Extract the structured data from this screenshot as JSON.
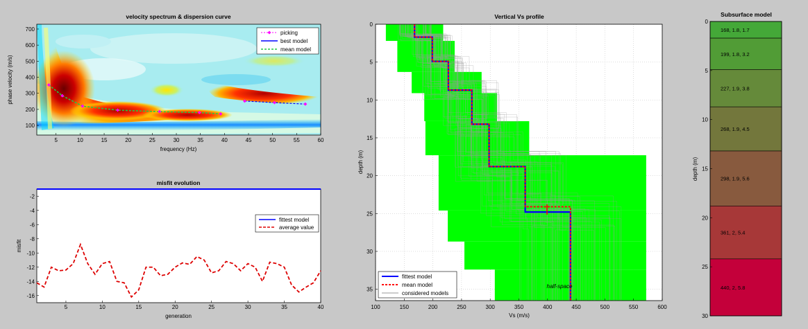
{
  "colors": {
    "figure_bg": "#c8c8c8",
    "fittest": "#0000ff",
    "mean": "#ff0000",
    "considered": "#9a9a9a",
    "envelope": "#00ff00",
    "picking": "#ff00ff",
    "mean_model_dash": "#00cc44"
  },
  "chart_data": [
    {
      "type": "heatmap",
      "title": "velocity spectrum & dispersion curve",
      "xlabel": "frequency (Hz)",
      "ylabel": "phase velocity (m/s)",
      "xlim": [
        1,
        60
      ],
      "ylim": [
        40,
        730
      ],
      "xticks": [
        5,
        10,
        15,
        20,
        25,
        30,
        35,
        40,
        45,
        50,
        55,
        60
      ],
      "yticks": [
        100,
        200,
        300,
        400,
        500,
        600,
        700
      ],
      "legend": {
        "placement": "top-right",
        "entries": [
          "picking",
          "best model",
          "mean model"
        ]
      },
      "series": [
        {
          "name": "picking",
          "x": [
            3.5,
            6.3,
            10.5,
            17.8,
            26.5,
            34.8,
            39.2,
            44.2,
            50.4,
            56.8
          ],
          "y": [
            352,
            285,
            220,
            195,
            186,
            180,
            172,
            252,
            242,
            233
          ]
        },
        {
          "name": "mean model",
          "x": [
            3.5,
            6.3,
            10.5,
            17.8,
            26.5,
            34.8,
            39.2
          ],
          "y": [
            352,
            285,
            220,
            195,
            186,
            180,
            172
          ]
        },
        {
          "name": "best model",
          "x": [
            44.2,
            50.4,
            56.8
          ],
          "y": [
            252,
            242,
            233
          ]
        }
      ]
    },
    {
      "type": "line",
      "title": "misfit evolution",
      "xlabel": "generation",
      "ylabel": "misfit",
      "xlim": [
        1,
        40
      ],
      "ylim": [
        -17,
        -1
      ],
      "xticks": [
        5,
        10,
        15,
        20,
        25,
        30,
        35,
        40
      ],
      "yticks": [
        -2,
        -4,
        -6,
        -8,
        -10,
        -12,
        -14,
        -16
      ],
      "legend": {
        "placement": "top-right",
        "entries": [
          "fittest model",
          "average value"
        ]
      },
      "series": [
        {
          "name": "fittest model",
          "x": [
            1,
            40
          ],
          "y": [
            -1,
            -1
          ]
        },
        {
          "name": "average value",
          "x": [
            1,
            2,
            3,
            4,
            5,
            6,
            7,
            8,
            9,
            10,
            11,
            12,
            13,
            14,
            15,
            16,
            17,
            18,
            19,
            20,
            21,
            22,
            23,
            24,
            25,
            26,
            27,
            28,
            29,
            30,
            31,
            32,
            33,
            34,
            35,
            36,
            37,
            38,
            39,
            40
          ],
          "y": [
            -14.2,
            -14.8,
            -12.0,
            -12.5,
            -12.4,
            -11.5,
            -8.8,
            -11.5,
            -13.0,
            -11.5,
            -11.2,
            -14.0,
            -14.2,
            -16.2,
            -15.2,
            -12.0,
            -12.0,
            -13.2,
            -13.0,
            -12.0,
            -11.4,
            -11.6,
            -10.5,
            -11.0,
            -12.8,
            -12.5,
            -11.2,
            -11.5,
            -12.5,
            -11.5,
            -12.0,
            -14.0,
            -11.3,
            -11.5,
            -12.0,
            -14.5,
            -15.5,
            -14.8,
            -14.2,
            -12.5
          ]
        }
      ]
    },
    {
      "type": "line",
      "title": "Vertical Vs profile",
      "xlabel": "Vs (m/s)",
      "ylabel": "depth (m)",
      "xlim": [
        100,
        600
      ],
      "ylim": [
        0,
        36.5
      ],
      "y_reversed": true,
      "xticks": [
        100,
        150,
        200,
        250,
        300,
        350,
        400,
        450,
        500,
        550,
        600
      ],
      "yticks": [
        0,
        5,
        10,
        15,
        20,
        25,
        30,
        35
      ],
      "legend": {
        "placement": "bottom-left",
        "entries": [
          "fittest model",
          "mean model",
          "considered models"
        ]
      },
      "annotations": [
        "half-space"
      ],
      "envelope_steps": [
        {
          "d": [
            0,
            2.2
          ],
          "vs": [
            118,
            218
          ]
        },
        {
          "d": [
            2.2,
            6.3
          ],
          "vs": [
            138,
            238
          ]
        },
        {
          "d": [
            6.3,
            9.1
          ],
          "vs": [
            163,
            285
          ]
        },
        {
          "d": [
            9.1,
            12.8
          ],
          "vs": [
            185,
            312
          ]
        },
        {
          "d": [
            12.8,
            17.3
          ],
          "vs": [
            187,
            368
          ]
        },
        {
          "d": [
            17.3,
            24.6
          ],
          "vs": [
            210,
            572
          ]
        },
        {
          "d": [
            24.6,
            28.7
          ],
          "vs": [
            226,
            572
          ]
        },
        {
          "d": [
            28.7,
            32.4
          ],
          "vs": [
            255,
            572
          ]
        },
        {
          "d": [
            32.4,
            36.5
          ],
          "vs": [
            308,
            572
          ]
        }
      ],
      "series": [
        {
          "name": "fittest model",
          "vs": [
            168,
            168,
            199,
            199,
            227,
            227,
            268,
            268,
            298,
            298,
            361,
            361,
            440,
            440
          ],
          "depth": [
            0,
            1.7,
            1.7,
            4.9,
            4.9,
            8.7,
            8.7,
            13.2,
            13.2,
            18.8,
            18.8,
            24.8,
            24.8,
            36.5
          ]
        },
        {
          "name": "mean model",
          "vs": [
            168,
            168,
            199,
            199,
            227,
            227,
            268,
            268,
            298,
            298,
            361,
            361,
            440,
            440
          ],
          "depth": [
            0,
            1.7,
            1.7,
            4.9,
            4.9,
            8.7,
            8.7,
            13.2,
            13.2,
            18.8,
            18.8,
            24.1,
            24.1,
            36.5
          ]
        }
      ]
    },
    {
      "type": "bar",
      "title": "Subsurface model",
      "ylabel": "depth (m)",
      "ylim": [
        0,
        30
      ],
      "y_reversed": true,
      "yticks": [
        0,
        5,
        10,
        15,
        20,
        25,
        30
      ],
      "layers": [
        {
          "label": "168, 1.8, 1.7",
          "top": 0,
          "bottom": 1.7,
          "color": "#44a838"
        },
        {
          "label": "199, 1.8, 3.2",
          "top": 1.7,
          "bottom": 4.9,
          "color": "#519c36"
        },
        {
          "label": "227, 1.9, 3.8",
          "top": 4.9,
          "bottom": 8.7,
          "color": "#658a3a"
        },
        {
          "label": "268, 1.9, 4.5",
          "top": 8.7,
          "bottom": 13.2,
          "color": "#73773c"
        },
        {
          "label": "298, 1.9, 5.6",
          "top": 13.2,
          "bottom": 18.8,
          "color": "#885a3e"
        },
        {
          "label": "361, 2, 5.4",
          "top": 18.8,
          "bottom": 24.2,
          "color": "#a73838"
        },
        {
          "label": "440, 2, 5.8",
          "top": 24.2,
          "bottom": 30,
          "color": "#c4003a"
        }
      ]
    }
  ]
}
